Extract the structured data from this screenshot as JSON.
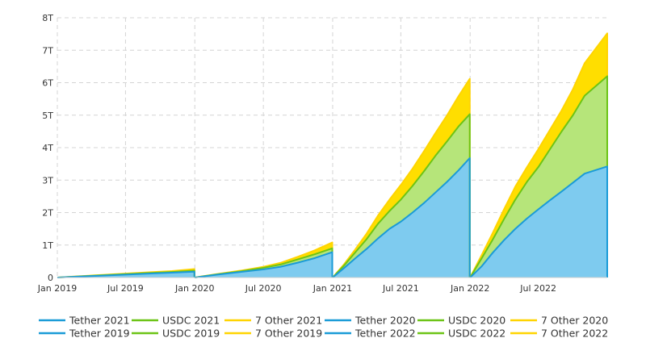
{
  "chart_data": {
    "type": "area",
    "stacked": true,
    "grid": true,
    "legend_position": "bottom",
    "x_axis": {
      "type": "date",
      "range": [
        "2019-01-01",
        "2022-12-31"
      ],
      "ticks": [
        {
          "date": "2019-01-01",
          "label": "Jan 2019"
        },
        {
          "date": "2019-07-01",
          "label": "Jul 2019"
        },
        {
          "date": "2020-01-01",
          "label": "Jan 2020"
        },
        {
          "date": "2020-07-01",
          "label": "Jul 2020"
        },
        {
          "date": "2021-01-01",
          "label": "Jan 2021"
        },
        {
          "date": "2021-07-01",
          "label": "Jul 2021"
        },
        {
          "date": "2022-01-01",
          "label": "Jan 2022"
        },
        {
          "date": "2022-07-01",
          "label": "Jul 2022"
        }
      ]
    },
    "y_axis": {
      "range": [
        0,
        8
      ],
      "unit": "T",
      "ticks": [
        {
          "value": 0,
          "label": "0"
        },
        {
          "value": 1,
          "label": "1T"
        },
        {
          "value": 2,
          "label": "2T"
        },
        {
          "value": 3,
          "label": "3T"
        },
        {
          "value": 4,
          "label": "4T"
        },
        {
          "value": 5,
          "label": "5T"
        },
        {
          "value": 6,
          "label": "6T"
        },
        {
          "value": 7,
          "label": "7T"
        },
        {
          "value": 8,
          "label": "8T"
        }
      ]
    },
    "colors": {
      "tether_line": "#1a9bd7",
      "tether_fill": "#7ecbef",
      "usdc_line": "#6cc416",
      "usdc_fill": "#b6e57a",
      "other_line": "#ffd400",
      "other_fill": "#ffde00"
    },
    "years": [
      {
        "year": 2019,
        "tether": {
          "name": "Tether 2019",
          "points": [
            [
              "2019-01-01",
              0
            ],
            [
              "2019-03-01",
              0.03
            ],
            [
              "2019-05-01",
              0.06
            ],
            [
              "2019-07-01",
              0.09
            ],
            [
              "2019-09-01",
              0.12
            ],
            [
              "2019-11-01",
              0.15
            ],
            [
              "2019-12-31",
              0.18
            ]
          ]
        },
        "usdc": {
          "name": "USDC 2019",
          "points": [
            [
              "2019-01-01",
              0
            ],
            [
              "2019-03-01",
              0.035
            ],
            [
              "2019-05-01",
              0.07
            ],
            [
              "2019-07-01",
              0.105
            ],
            [
              "2019-09-01",
              0.14
            ],
            [
              "2019-11-01",
              0.17
            ],
            [
              "2019-12-31",
              0.21
            ]
          ]
        },
        "other": {
          "name": "7 Other 2019",
          "points": [
            [
              "2019-01-01",
              0
            ],
            [
              "2019-03-01",
              0.04
            ],
            [
              "2019-05-01",
              0.08
            ],
            [
              "2019-07-01",
              0.12
            ],
            [
              "2019-09-01",
              0.16
            ],
            [
              "2019-11-01",
              0.2
            ],
            [
              "2019-12-31",
              0.26
            ]
          ]
        }
      },
      {
        "year": 2020,
        "tether": {
          "name": "Tether 2020",
          "points": [
            [
              "2020-01-01",
              0
            ],
            [
              "2020-03-01",
              0.09
            ],
            [
              "2020-05-01",
              0.17
            ],
            [
              "2020-07-01",
              0.25
            ],
            [
              "2020-08-15",
              0.33
            ],
            [
              "2020-10-01",
              0.46
            ],
            [
              "2020-11-15",
              0.6
            ],
            [
              "2020-12-31",
              0.78
            ]
          ]
        },
        "usdc": {
          "name": "USDC 2020",
          "points": [
            [
              "2020-01-01",
              0
            ],
            [
              "2020-03-01",
              0.1
            ],
            [
              "2020-05-01",
              0.19
            ],
            [
              "2020-07-01",
              0.3
            ],
            [
              "2020-08-15",
              0.4
            ],
            [
              "2020-10-01",
              0.56
            ],
            [
              "2020-11-15",
              0.72
            ],
            [
              "2020-12-31",
              0.9
            ]
          ]
        },
        "other": {
          "name": "7 Other 2020",
          "points": [
            [
              "2020-01-01",
              0
            ],
            [
              "2020-03-01",
              0.11
            ],
            [
              "2020-05-01",
              0.21
            ],
            [
              "2020-07-01",
              0.33
            ],
            [
              "2020-08-15",
              0.45
            ],
            [
              "2020-10-01",
              0.64
            ],
            [
              "2020-11-15",
              0.84
            ],
            [
              "2020-12-31",
              1.08
            ]
          ]
        }
      },
      {
        "year": 2021,
        "tether": {
          "name": "Tether 2021",
          "points": [
            [
              "2021-01-01",
              0
            ],
            [
              "2021-02-01",
              0.3
            ],
            [
              "2021-03-01",
              0.58
            ],
            [
              "2021-04-01",
              0.88
            ],
            [
              "2021-05-01",
              1.2
            ],
            [
              "2021-06-01",
              1.5
            ],
            [
              "2021-07-01",
              1.72
            ],
            [
              "2021-08-01",
              2.0
            ],
            [
              "2021-09-01",
              2.3
            ],
            [
              "2021-10-01",
              2.62
            ],
            [
              "2021-11-01",
              2.95
            ],
            [
              "2021-12-01",
              3.3
            ],
            [
              "2021-12-31",
              3.68
            ]
          ]
        },
        "usdc": {
          "name": "USDC 2021",
          "points": [
            [
              "2021-01-01",
              0
            ],
            [
              "2021-02-01",
              0.38
            ],
            [
              "2021-03-01",
              0.76
            ],
            [
              "2021-04-01",
              1.18
            ],
            [
              "2021-05-01",
              1.65
            ],
            [
              "2021-06-01",
              2.05
            ],
            [
              "2021-07-01",
              2.4
            ],
            [
              "2021-08-01",
              2.82
            ],
            [
              "2021-09-01",
              3.28
            ],
            [
              "2021-10-01",
              3.75
            ],
            [
              "2021-11-01",
              4.2
            ],
            [
              "2021-12-01",
              4.65
            ],
            [
              "2021-12-31",
              5.03
            ]
          ]
        },
        "other": {
          "name": "7 Other 2021",
          "points": [
            [
              "2021-01-01",
              0
            ],
            [
              "2021-02-01",
              0.42
            ],
            [
              "2021-03-01",
              0.85
            ],
            [
              "2021-04-01",
              1.35
            ],
            [
              "2021-05-01",
              1.9
            ],
            [
              "2021-06-01",
              2.4
            ],
            [
              "2021-07-01",
              2.85
            ],
            [
              "2021-08-01",
              3.35
            ],
            [
              "2021-09-01",
              3.9
            ],
            [
              "2021-10-01",
              4.45
            ],
            [
              "2021-11-01",
              5.0
            ],
            [
              "2021-12-01",
              5.58
            ],
            [
              "2021-12-31",
              6.12
            ]
          ]
        }
      },
      {
        "year": 2022,
        "tether": {
          "name": "Tether 2022",
          "points": [
            [
              "2022-01-01",
              0
            ],
            [
              "2022-02-01",
              0.35
            ],
            [
              "2022-03-01",
              0.75
            ],
            [
              "2022-04-01",
              1.15
            ],
            [
              "2022-05-01",
              1.5
            ],
            [
              "2022-06-01",
              1.82
            ],
            [
              "2022-07-01",
              2.1
            ],
            [
              "2022-08-01",
              2.38
            ],
            [
              "2022-09-01",
              2.65
            ],
            [
              "2022-10-01",
              2.92
            ],
            [
              "2022-11-01",
              3.2
            ],
            [
              "2022-12-31",
              3.42
            ]
          ]
        },
        "usdc": {
          "name": "USDC 2022",
          "points": [
            [
              "2022-01-01",
              0
            ],
            [
              "2022-02-01",
              0.6
            ],
            [
              "2022-03-01",
              1.15
            ],
            [
              "2022-04-01",
              1.8
            ],
            [
              "2022-05-01",
              2.4
            ],
            [
              "2022-06-01",
              2.95
            ],
            [
              "2022-07-01",
              3.4
            ],
            [
              "2022-08-01",
              3.95
            ],
            [
              "2022-09-01",
              4.5
            ],
            [
              "2022-10-01",
              5.0
            ],
            [
              "2022-11-01",
              5.6
            ],
            [
              "2022-12-31",
              6.2
            ]
          ]
        },
        "other": {
          "name": "7 Other 2022",
          "points": [
            [
              "2022-01-01",
              0
            ],
            [
              "2022-02-01",
              0.7
            ],
            [
              "2022-03-01",
              1.35
            ],
            [
              "2022-04-01",
              2.1
            ],
            [
              "2022-05-01",
              2.8
            ],
            [
              "2022-06-01",
              3.4
            ],
            [
              "2022-07-01",
              3.95
            ],
            [
              "2022-08-01",
              4.55
            ],
            [
              "2022-09-01",
              5.15
            ],
            [
              "2022-10-01",
              5.8
            ],
            [
              "2022-11-01",
              6.6
            ],
            [
              "2022-12-31",
              7.52
            ]
          ]
        }
      }
    ],
    "legend": [
      {
        "label": "Tether 2021",
        "color": "#1a9bd7"
      },
      {
        "label": "USDC 2021",
        "color": "#6cc416"
      },
      {
        "label": "7 Other 2021",
        "color": "#ffd400"
      },
      {
        "label": "Tether 2020",
        "color": "#1a9bd7"
      },
      {
        "label": "USDC 2020",
        "color": "#6cc416"
      },
      {
        "label": "7 Other 2020",
        "color": "#ffd400"
      },
      {
        "label": "Tether 2019",
        "color": "#1a9bd7"
      },
      {
        "label": "USDC 2019",
        "color": "#6cc416"
      },
      {
        "label": "7 Other 2019",
        "color": "#ffd400"
      },
      {
        "label": "Tether 2022",
        "color": "#1a9bd7"
      },
      {
        "label": "USDC 2022",
        "color": "#6cc416"
      },
      {
        "label": "7 Other 2022",
        "color": "#ffd400"
      }
    ]
  }
}
